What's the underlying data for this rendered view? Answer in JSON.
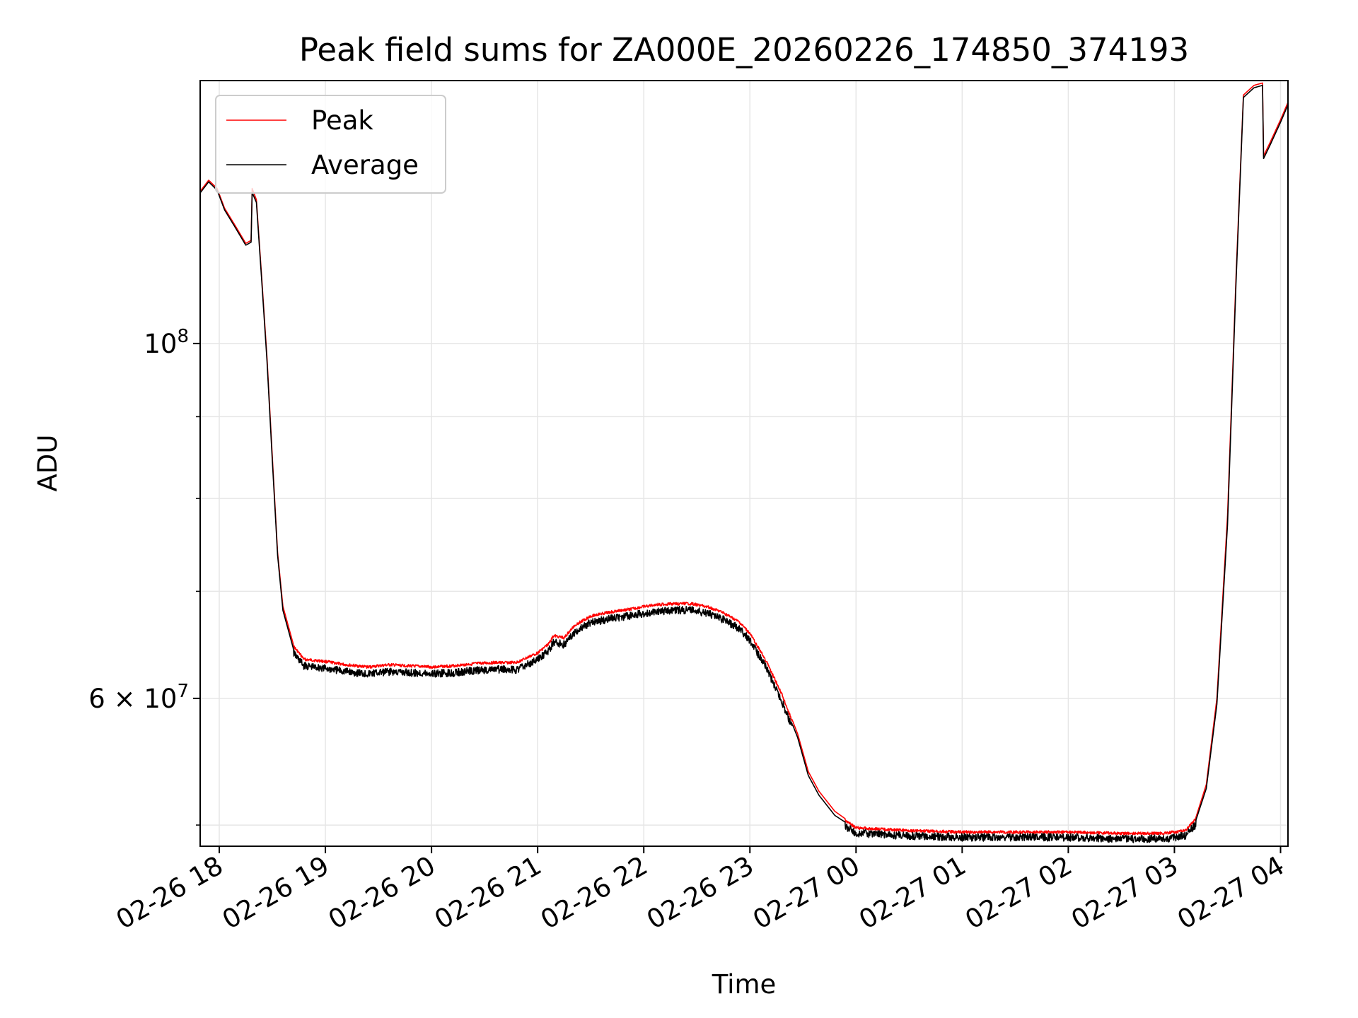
{
  "chart_data": {
    "type": "line",
    "title": "Peak field sums for ZA000E_20260226_174850_374193",
    "xlabel": "Time",
    "ylabel": "ADU",
    "yscale": "log",
    "ylim": [
      48500000,
      146000000
    ],
    "xlim_hours": [
      17.82,
      28.07
    ],
    "grid": true,
    "legend_location": "upper left",
    "x_ticks": [
      {
        "hour": 18,
        "label": "02-26 18"
      },
      {
        "hour": 19,
        "label": "02-26 19"
      },
      {
        "hour": 20,
        "label": "02-26 20"
      },
      {
        "hour": 21,
        "label": "02-26 21"
      },
      {
        "hour": 22,
        "label": "02-26 22"
      },
      {
        "hour": 23,
        "label": "02-26 23"
      },
      {
        "hour": 24,
        "label": "02-27 00"
      },
      {
        "hour": 25,
        "label": "02-27 01"
      },
      {
        "hour": 26,
        "label": "02-27 02"
      },
      {
        "hour": 27,
        "label": "02-27 03"
      },
      {
        "hour": 28,
        "label": "02-27 04"
      }
    ],
    "y_major_ticks": [
      {
        "value": 60000000,
        "base": "6 × 10",
        "exp": "7"
      },
      {
        "value": 100000000,
        "base": "10",
        "exp": "8"
      }
    ],
    "y_minor_ticks": [
      50000000,
      70000000,
      80000000,
      90000000
    ],
    "series": [
      {
        "name": "Peak",
        "color": "#ff0000",
        "points": [
          [
            17.82,
            124500000
          ],
          [
            17.9,
            126500000
          ],
          [
            17.98,
            125000000
          ],
          [
            18.05,
            121500000
          ],
          [
            18.15,
            118500000
          ],
          [
            18.25,
            115500000
          ],
          [
            18.3,
            116000000
          ],
          [
            18.31,
            125000000
          ],
          [
            18.35,
            123000000
          ],
          [
            18.38,
            115000000
          ],
          [
            18.4,
            110000000
          ],
          [
            18.45,
            98000000
          ],
          [
            18.5,
            85000000
          ],
          [
            18.55,
            74000000
          ],
          [
            18.6,
            68500000
          ],
          [
            18.7,
            64800000
          ],
          [
            18.8,
            63600000
          ],
          [
            19.0,
            63400000
          ],
          [
            19.2,
            63100000
          ],
          [
            19.4,
            62900000
          ],
          [
            19.6,
            63100000
          ],
          [
            19.8,
            63000000
          ],
          [
            20.0,
            62900000
          ],
          [
            20.2,
            63000000
          ],
          [
            20.4,
            63200000
          ],
          [
            20.6,
            63300000
          ],
          [
            20.8,
            63300000
          ],
          [
            21.0,
            64200000
          ],
          [
            21.1,
            65000000
          ],
          [
            21.15,
            65800000
          ],
          [
            21.25,
            65600000
          ],
          [
            21.35,
            66800000
          ],
          [
            21.5,
            67700000
          ],
          [
            21.7,
            68100000
          ],
          [
            21.9,
            68400000
          ],
          [
            22.1,
            68800000
          ],
          [
            22.3,
            68900000
          ],
          [
            22.45,
            68900000
          ],
          [
            22.6,
            68600000
          ],
          [
            22.75,
            68000000
          ],
          [
            22.9,
            67100000
          ],
          [
            23.0,
            66000000
          ],
          [
            23.15,
            63500000
          ],
          [
            23.3,
            60500000
          ],
          [
            23.45,
            57000000
          ],
          [
            23.55,
            54000000
          ],
          [
            23.65,
            52500000
          ],
          [
            23.8,
            51000000
          ],
          [
            24.0,
            49900000
          ],
          [
            24.5,
            49700000
          ],
          [
            25.0,
            49600000
          ],
          [
            25.5,
            49600000
          ],
          [
            26.0,
            49600000
          ],
          [
            26.5,
            49500000
          ],
          [
            26.9,
            49500000
          ],
          [
            27.1,
            49700000
          ],
          [
            27.2,
            50500000
          ],
          [
            27.3,
            53000000
          ],
          [
            27.4,
            60000000
          ],
          [
            27.5,
            78000000
          ],
          [
            27.58,
            110000000
          ],
          [
            27.65,
            143000000
          ],
          [
            27.75,
            145000000
          ],
          [
            27.83,
            145500000
          ],
          [
            27.84,
            131000000
          ],
          [
            27.9,
            133500000
          ],
          [
            28.0,
            138000000
          ],
          [
            28.07,
            141500000
          ]
        ]
      },
      {
        "name": "Average",
        "color": "#000000",
        "points": [
          [
            17.82,
            124200000
          ],
          [
            17.9,
            126200000
          ],
          [
            17.98,
            124700000
          ],
          [
            18.05,
            121200000
          ],
          [
            18.15,
            118200000
          ],
          [
            18.25,
            115200000
          ],
          [
            18.3,
            115700000
          ],
          [
            18.31,
            124300000
          ],
          [
            18.35,
            122500000
          ],
          [
            18.38,
            114500000
          ],
          [
            18.4,
            109500000
          ],
          [
            18.45,
            97500000
          ],
          [
            18.5,
            84500000
          ],
          [
            18.55,
            73700000
          ],
          [
            18.6,
            68100000
          ],
          [
            18.7,
            64400000
          ],
          [
            18.8,
            63200000
          ],
          [
            19.0,
            63000000
          ],
          [
            19.2,
            62700000
          ],
          [
            19.4,
            62500000
          ],
          [
            19.6,
            62700000
          ],
          [
            19.8,
            62600000
          ],
          [
            20.0,
            62500000
          ],
          [
            20.2,
            62600000
          ],
          [
            20.4,
            62800000
          ],
          [
            20.6,
            62900000
          ],
          [
            20.8,
            62900000
          ],
          [
            21.0,
            63800000
          ],
          [
            21.1,
            64600000
          ],
          [
            21.15,
            65400000
          ],
          [
            21.25,
            65200000
          ],
          [
            21.35,
            66400000
          ],
          [
            21.5,
            67300000
          ],
          [
            21.7,
            67700000
          ],
          [
            21.9,
            68000000
          ],
          [
            22.1,
            68400000
          ],
          [
            22.3,
            68500000
          ],
          [
            22.45,
            68500000
          ],
          [
            22.6,
            68200000
          ],
          [
            22.75,
            67600000
          ],
          [
            22.9,
            66700000
          ],
          [
            23.0,
            65600000
          ],
          [
            23.15,
            63100000
          ],
          [
            23.3,
            60100000
          ],
          [
            23.45,
            56700000
          ],
          [
            23.55,
            53700000
          ],
          [
            23.65,
            52200000
          ],
          [
            23.8,
            50700000
          ],
          [
            24.0,
            49700000
          ],
          [
            24.5,
            49500000
          ],
          [
            25.0,
            49400000
          ],
          [
            25.5,
            49400000
          ],
          [
            26.0,
            49400000
          ],
          [
            26.5,
            49300000
          ],
          [
            26.9,
            49300000
          ],
          [
            27.1,
            49500000
          ],
          [
            27.2,
            50300000
          ],
          [
            27.3,
            52700000
          ],
          [
            27.4,
            59500000
          ],
          [
            27.5,
            77000000
          ],
          [
            27.58,
            109000000
          ],
          [
            27.65,
            142500000
          ],
          [
            27.75,
            144500000
          ],
          [
            27.83,
            145000000
          ],
          [
            27.84,
            130500000
          ],
          [
            27.9,
            133000000
          ],
          [
            28.0,
            137500000
          ],
          [
            28.07,
            141000000
          ]
        ]
      }
    ]
  }
}
